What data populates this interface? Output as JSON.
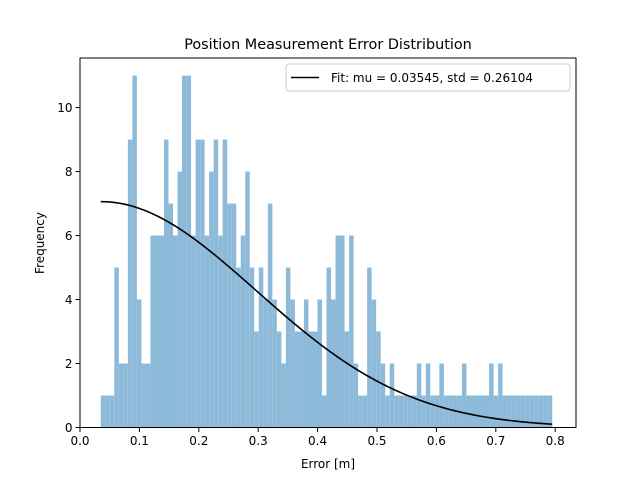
{
  "chart_data": {
    "type": "bar",
    "title": "Position Measurement Error Distribution",
    "xlabel": "Error [m]",
    "ylabel": "Frequency",
    "xlim": [
      0.0,
      0.835
    ],
    "ylim": [
      0,
      11.55
    ],
    "xticks": [
      "0.0",
      "0.1",
      "0.2",
      "0.3",
      "0.4",
      "0.5",
      "0.6",
      "0.7",
      "0.8"
    ],
    "xtick_values": [
      0.0,
      0.1,
      0.2,
      0.3,
      0.4,
      0.5,
      0.6,
      0.7,
      0.8
    ],
    "yticks": [
      "0",
      "2",
      "4",
      "6",
      "8",
      "10"
    ],
    "ytick_values": [
      0,
      2,
      4,
      6,
      8,
      10
    ],
    "grid": false,
    "legend_position": "top-right",
    "bar_color": "#8dbad9",
    "fit_color": "#000000",
    "histogram": {
      "bin_start": 0.035,
      "bin_width": 0.0076,
      "counts": [
        1,
        1,
        1,
        5,
        2,
        2,
        9,
        11,
        4,
        2,
        2,
        6,
        6,
        6,
        9,
        7,
        6,
        8,
        11,
        11,
        6,
        9,
        9,
        6,
        8,
        9,
        6,
        9,
        7,
        7,
        5,
        6,
        8,
        5,
        3,
        5,
        4,
        7,
        4,
        3,
        2,
        5,
        4,
        3,
        3,
        4,
        3,
        3,
        4,
        1,
        5,
        4,
        6,
        6,
        3,
        6,
        2,
        1,
        1,
        5,
        4,
        3,
        2,
        1,
        2,
        1,
        1,
        1,
        1,
        1,
        2,
        1,
        2,
        1,
        1,
        2,
        1,
        1,
        1,
        1,
        2,
        1,
        1,
        1,
        1,
        1,
        2,
        1,
        2,
        1,
        1,
        1,
        1,
        1,
        1,
        1,
        1,
        1,
        1,
        1
      ],
      "count_adjustments": {}
    },
    "series": [
      {
        "name": "Fit: mu = 0.03545, std = 0.26104",
        "kind": "line",
        "mu": 0.03545,
        "std": 0.26104,
        "peak": 7.06,
        "x_range": [
          0.035,
          0.795
        ]
      }
    ]
  }
}
